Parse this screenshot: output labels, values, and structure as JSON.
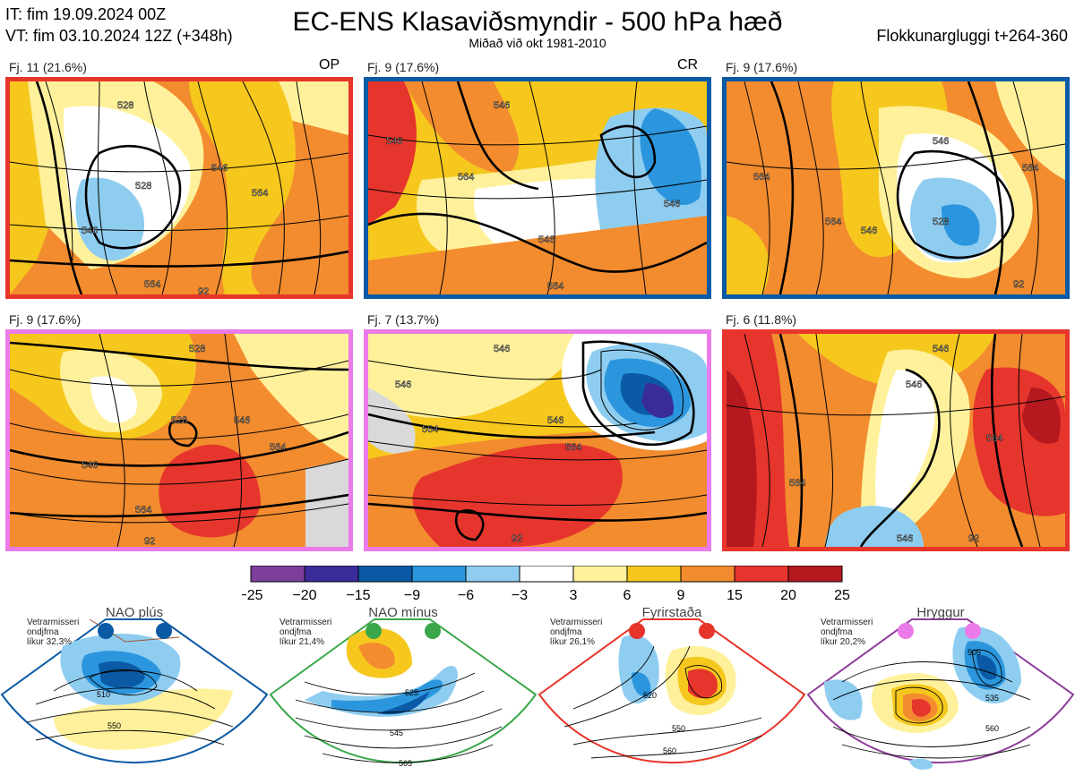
{
  "header": {
    "it": "IT: fim 19.09.2024 00Z",
    "vt": "VT: fim 03.10.2024 12Z  (+348h)",
    "title": "EC-ENS Klasaviðsmyndir - 500 hPa hæð",
    "subtitle": "Miðað við okt 1981-2010",
    "window": "Flokkunargluggi t+264-360"
  },
  "colors": {
    "red_frame": "#e8352b",
    "blue_frame": "#0b5aa5",
    "pink_frame": "#ea7be8",
    "green_frame": "#3aa84a",
    "purple_frame": "#8e3f9a"
  },
  "panels": [
    {
      "label": "Fj. 11 (21.6%)",
      "tag": "OP",
      "frame": "red"
    },
    {
      "label": "Fj. 9 (17.6%)",
      "tag": "CR",
      "frame": "blue"
    },
    {
      "label": "Fj. 9 (17.6%)",
      "tag": "",
      "frame": "blue"
    },
    {
      "label": "Fj. 9 (17.6%)",
      "tag": "",
      "frame": "pink"
    },
    {
      "label": "Fj. 7 (13.7%)",
      "tag": "",
      "frame": "pink"
    },
    {
      "label": "Fj. 6 (11.8%)",
      "tag": "",
      "frame": "red"
    }
  ],
  "contour_labels": {
    "p0": [
      "528",
      "546",
      "564",
      "528",
      "546",
      "564",
      "92"
    ],
    "p1": [
      "546",
      "564",
      "546",
      "564",
      "546",
      "546"
    ],
    "p2": [
      "564",
      "546",
      "564",
      "528",
      "546",
      "564",
      "92"
    ],
    "p3": [
      "528",
      "546",
      "564",
      "546",
      "528",
      "564",
      "92"
    ],
    "p4": [
      "546",
      "564",
      "546",
      "564",
      "546",
      "92"
    ],
    "p5": [
      "546",
      "546",
      "564",
      "564",
      "546",
      "92"
    ]
  },
  "colorbar": {
    "ticks": [
      "−25",
      "−20",
      "−15",
      "−9",
      "−6",
      "−3",
      "3",
      "6",
      "9",
      "15",
      "20",
      "25"
    ],
    "colors": [
      "#7b3f99",
      "#3a2b9a",
      "#0b5aa5",
      "#2b96dd",
      "#8fcdf0",
      "#ffffff",
      "#fff19b",
      "#f6c81e",
      "#f28c2e",
      "#e6352d",
      "#b5191f"
    ]
  },
  "regimes": [
    {
      "name": "NAO plús",
      "prob": [
        "Vetrarmisseri",
        "ondjfma",
        "líkur 32,3%"
      ],
      "labels": [
        "510",
        "550"
      ],
      "dot_color": "#0b5aa5"
    },
    {
      "name": "NAO mínus",
      "prob": [
        "Vetrarmisseri",
        "ondjfma",
        "líkur 21,4%"
      ],
      "labels": [
        "525",
        "545",
        "565"
      ],
      "dot_color": "#3aa84a"
    },
    {
      "name": "Fyrirstaða",
      "prob": [
        "Vetrarmisseri",
        "ondjfma",
        "líkur 26,1%"
      ],
      "labels": [
        "520",
        "550",
        "560"
      ],
      "dot_color": "#e8352b"
    },
    {
      "name": "Hryggur",
      "prob": [
        "Vetrarmisseri",
        "ondjfma",
        "líkur 20,2%"
      ],
      "labels": [
        "505",
        "535",
        "560"
      ],
      "dot_color": "#ea7be8"
    }
  ]
}
